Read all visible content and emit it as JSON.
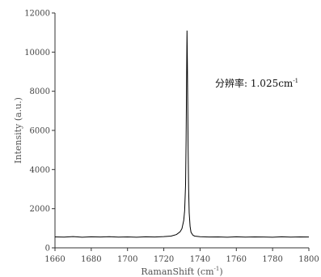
{
  "chart_data": {
    "type": "line",
    "xlabel": "RamanShift (cm",
    "xlabel_sup": "-1",
    "xlabel_close": ")",
    "ylabel": "Intensity (a.u.)",
    "xlim": [
      1660,
      1800
    ],
    "ylim": [
      0,
      12000
    ],
    "x_ticks": [
      1660,
      1680,
      1700,
      1720,
      1740,
      1760,
      1780,
      1800
    ],
    "y_ticks": [
      0,
      2000,
      4000,
      6000,
      8000,
      10000,
      12000
    ],
    "grid": false,
    "annotation": {
      "text": "分辨率: 1.025cm",
      "sup": "-1"
    },
    "series": [
      {
        "color": "#000000",
        "x": [
          1660,
          1665,
          1670,
          1675,
          1680,
          1685,
          1690,
          1695,
          1700,
          1705,
          1710,
          1715,
          1720,
          1724,
          1727,
          1729,
          1730,
          1731,
          1731.5,
          1732,
          1732.3,
          1732.6,
          1732.8,
          1733,
          1733.2,
          1733.4,
          1733.7,
          1734,
          1734.5,
          1735,
          1736,
          1737,
          1740,
          1745,
          1750,
          1755,
          1760,
          1765,
          1770,
          1775,
          1780,
          1785,
          1790,
          1795,
          1800
        ],
        "y": [
          560,
          550,
          575,
          545,
          565,
          555,
          570,
          550,
          560,
          545,
          565,
          555,
          575,
          600,
          680,
          820,
          980,
          1400,
          1900,
          3200,
          5500,
          8800,
          11100,
          9500,
          7500,
          5200,
          3000,
          1800,
          1100,
          800,
          650,
          600,
          570,
          555,
          560,
          545,
          565,
          550,
          560,
          555,
          545,
          565,
          550,
          560,
          555
        ]
      }
    ]
  }
}
